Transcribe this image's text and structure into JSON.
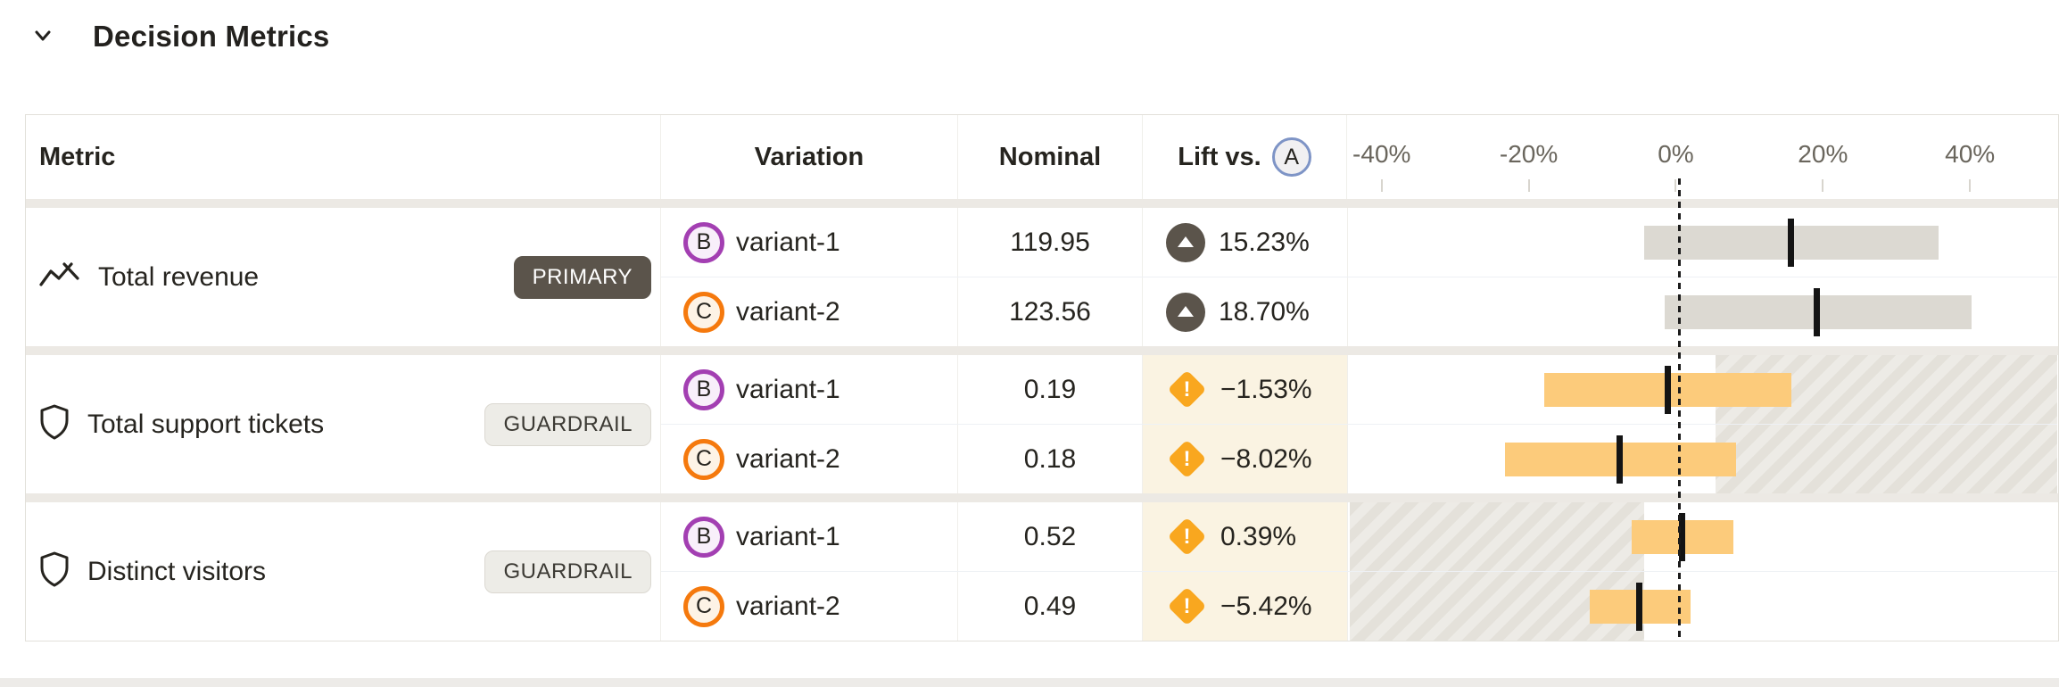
{
  "section": {
    "title": "Decision Metrics"
  },
  "table": {
    "header": {
      "metric": "Metric",
      "variation": "Variation",
      "nominal": "Nominal",
      "lift_label": "Lift vs.",
      "baseline": "A"
    },
    "axis": {
      "min": -44.7,
      "max": 51.5,
      "tick_values": [
        -40,
        -20,
        0,
        20,
        40
      ],
      "tick_labels": [
        "-40%",
        "-20%",
        "0%",
        "20%",
        "40%"
      ],
      "zero_line": 0
    },
    "groups": [
      {
        "metric": "Total revenue",
        "icon": "trend-line",
        "badge": "PRIMARY",
        "badge_style": "primary",
        "hatch_pct": null,
        "rows": [
          {
            "variation_letter": "B",
            "variation_name": "variant-1",
            "nominal": "119.95",
            "lift": "15.23%",
            "lift_icon": "arrow-up-circle",
            "tone": "neutral",
            "ci_pct": [
              -4.7,
              35.4
            ],
            "point_pct": 15.23
          },
          {
            "variation_letter": "C",
            "variation_name": "variant-2",
            "nominal": "123.56",
            "lift": "18.70%",
            "lift_icon": "arrow-up-circle",
            "tone": "neutral",
            "ci_pct": [
              -1.9,
              39.8
            ],
            "point_pct": 18.7
          }
        ]
      },
      {
        "metric": "Total support tickets",
        "icon": "shield",
        "badge": "GUARDRAIL",
        "badge_style": "guardrail",
        "hatch_pct": {
          "from": 5,
          "to": 51.5
        },
        "rows": [
          {
            "variation_letter": "B",
            "variation_name": "variant-1",
            "nominal": "0.19",
            "lift": "−1.53%",
            "lift_icon": "warning-diamond",
            "tone": "warning",
            "ci_pct": [
              -18.3,
              15.3
            ],
            "point_pct": -1.53
          },
          {
            "variation_letter": "C",
            "variation_name": "variant-2",
            "nominal": "0.18",
            "lift": "−8.02%",
            "lift_icon": "warning-diamond",
            "tone": "warning",
            "ci_pct": [
              -23.6,
              7.8
            ],
            "point_pct": -8.02
          }
        ]
      },
      {
        "metric": "Distinct visitors",
        "icon": "shield",
        "badge": "GUARDRAIL",
        "badge_style": "guardrail",
        "hatch_pct": {
          "from": -44.7,
          "to": -4.7
        },
        "rows": [
          {
            "variation_letter": "B",
            "variation_name": "variant-1",
            "nominal": "0.52",
            "lift": "0.39%",
            "lift_icon": "warning-diamond",
            "tone": "warning",
            "ci_pct": [
              -6.4,
              7.5
            ],
            "point_pct": 0.39
          },
          {
            "variation_letter": "C",
            "variation_name": "variant-2",
            "nominal": "0.49",
            "lift": "−5.42%",
            "lift_icon": "warning-diamond",
            "tone": "warning",
            "ci_pct": [
              -12.1,
              1.6
            ],
            "point_pct": -5.42
          }
        ]
      }
    ]
  },
  "colors": {
    "primary_badge_bg": "#5B544B",
    "guardrail_badge_bg": "#EDECE7",
    "bar_neutral": "#DCD9D2",
    "bar_warning": "#FCCB7B",
    "warning_icon": "#F9A71F",
    "lift_cell_warn_bg": "#FAF3E2",
    "variant_b_ring": "#A33FB2",
    "variant_c_ring": "#F5790D",
    "baseline_chip_ring": "#7E94C6",
    "group_band": "#ECE9E4",
    "hatch_dark": "#E4E1DA",
    "hatch_light": "#EDEBE6"
  }
}
